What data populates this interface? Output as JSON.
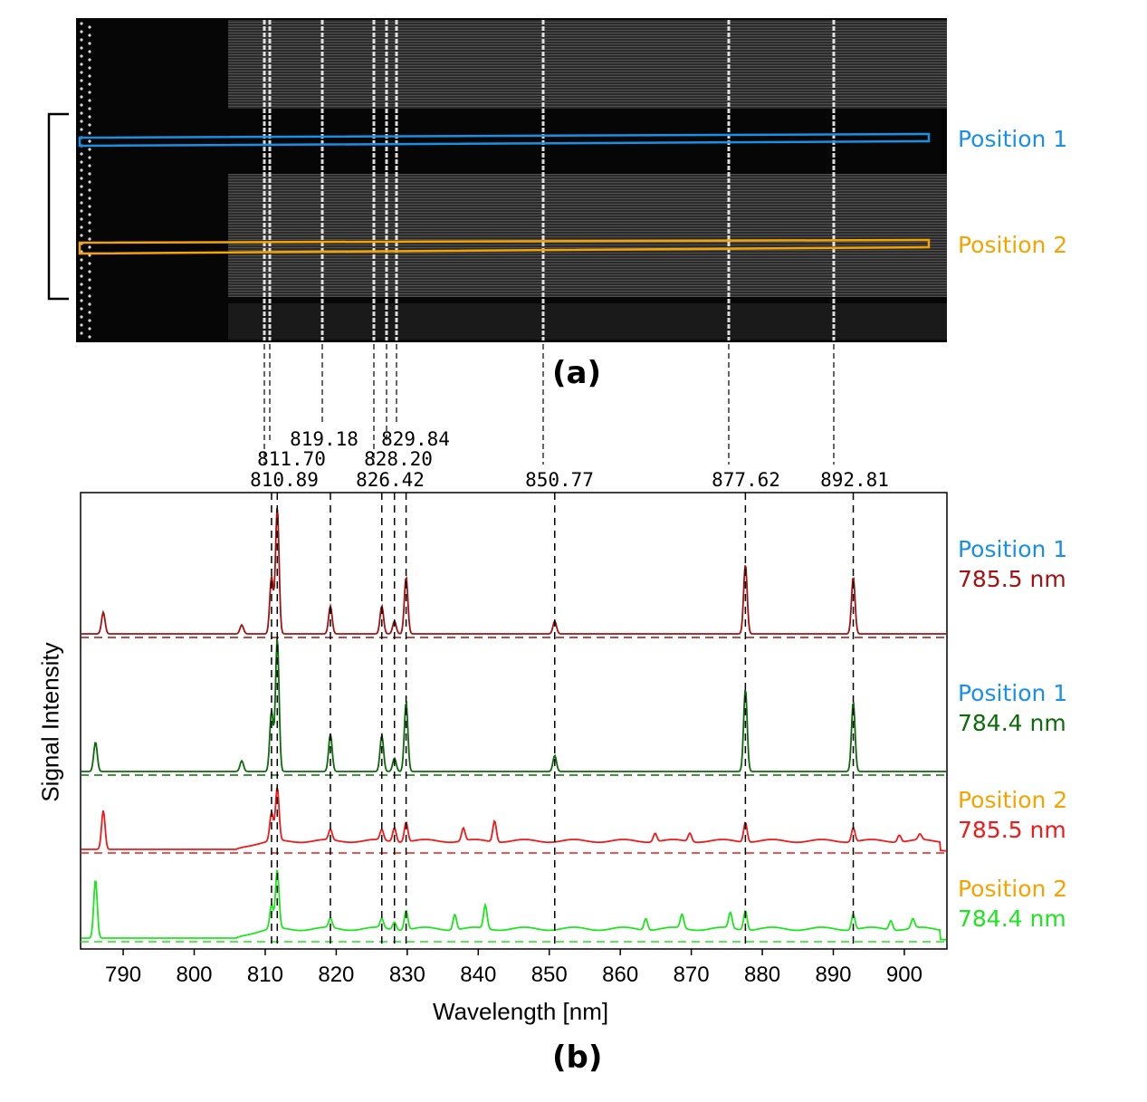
{
  "panel_a": {
    "label": "(a)",
    "positions": [
      {
        "name": "Position 1",
        "color": "#1a8fe6"
      },
      {
        "name": "Position 2",
        "color": "#f5a300"
      }
    ]
  },
  "panel_b": {
    "label": "(b)"
  },
  "chart_data": {
    "type": "line",
    "xlabel": "Wavelength [nm]",
    "ylabel": "Signal Intensity",
    "xlim": [
      784,
      906
    ],
    "xticks": [
      790,
      800,
      810,
      820,
      830,
      840,
      850,
      860,
      870,
      880,
      890,
      900
    ],
    "reference_lines": [
      {
        "label": "810.89",
        "x": 810.89
      },
      {
        "label": "811.70",
        "x": 811.7
      },
      {
        "label": "819.18",
        "x": 819.18
      },
      {
        "label": "826.42",
        "x": 826.42
      },
      {
        "label": "828.20",
        "x": 828.2
      },
      {
        "label": "829.84",
        "x": 829.84
      },
      {
        "label": "850.77",
        "x": 850.77
      },
      {
        "label": "877.62",
        "x": 877.62
      },
      {
        "label": "892.81",
        "x": 892.81
      }
    ],
    "series": [
      {
        "position": "Position 1",
        "position_color": "#1a8fe6",
        "name": "785.5 nm",
        "color": "#a31212",
        "lasing_peak": 787.2,
        "peaks": [
          [
            810.89,
            0.45
          ],
          [
            811.7,
            1.0
          ],
          [
            819.18,
            0.22
          ],
          [
            826.42,
            0.22
          ],
          [
            828.2,
            0.1
          ],
          [
            829.84,
            0.45
          ],
          [
            850.77,
            0.1
          ],
          [
            877.62,
            0.55
          ],
          [
            892.81,
            0.45
          ],
          [
            806.7,
            0.07
          ],
          [
            787.2,
            0.17
          ]
        ]
      },
      {
        "position": "Position 1",
        "position_color": "#1a8fe6",
        "name": "784.4 nm",
        "color": "#0b6b0b",
        "lasing_peak": 786.1,
        "peaks": [
          [
            810.89,
            0.45
          ],
          [
            811.7,
            1.0
          ],
          [
            819.18,
            0.28
          ],
          [
            826.42,
            0.27
          ],
          [
            828.2,
            0.1
          ],
          [
            829.84,
            0.52
          ],
          [
            850.77,
            0.12
          ],
          [
            877.62,
            0.62
          ],
          [
            892.81,
            0.52
          ],
          [
            806.7,
            0.08
          ],
          [
            786.1,
            0.22
          ]
        ]
      },
      {
        "position": "Position 2",
        "position_color": "#f5a300",
        "name": "785.5 nm",
        "color": "#f01a1a",
        "lasing_peak": 787.2,
        "peaks": [
          [
            810.89,
            0.4
          ],
          [
            811.7,
            0.75
          ],
          [
            819.18,
            0.15
          ],
          [
            826.42,
            0.15
          ],
          [
            828.2,
            0.2
          ],
          [
            829.84,
            0.28
          ],
          [
            837.9,
            0.18
          ],
          [
            842.3,
            0.3
          ],
          [
            864.9,
            0.12
          ],
          [
            869.8,
            0.12
          ],
          [
            877.62,
            0.28
          ],
          [
            892.81,
            0.2
          ],
          [
            899.3,
            0.1
          ],
          [
            902.2,
            0.08
          ],
          [
            787.2,
            0.55
          ]
        ]
      },
      {
        "position": "Position 2",
        "position_color": "#f5a300",
        "name": "784.4 nm",
        "color": "#1ee61e",
        "lasing_peak": 786.1,
        "peaks": [
          [
            810.89,
            0.3
          ],
          [
            811.7,
            0.75
          ],
          [
            819.18,
            0.12
          ],
          [
            826.42,
            0.12
          ],
          [
            828.2,
            0.1
          ],
          [
            829.84,
            0.25
          ],
          [
            836.7,
            0.2
          ],
          [
            841.0,
            0.3
          ],
          [
            863.6,
            0.15
          ],
          [
            868.7,
            0.18
          ],
          [
            875.5,
            0.2
          ],
          [
            877.62,
            0.25
          ],
          [
            892.81,
            0.2
          ],
          [
            898.1,
            0.12
          ],
          [
            901.2,
            0.12
          ],
          [
            786.1,
            0.75
          ]
        ]
      }
    ]
  }
}
